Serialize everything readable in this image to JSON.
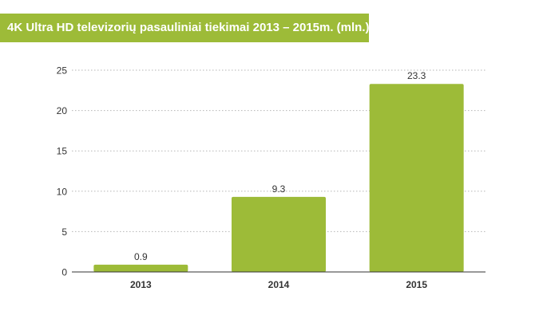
{
  "title": "4K Ultra HD televizorių pasauliniai tiekimai 2013 – 2015m. (mln.)",
  "colors": {
    "banner": "#9dbb38",
    "bar": "#9dbb38",
    "grid": "#b5b5b5",
    "axis": "#333333",
    "text": "#333333"
  },
  "chart_data": {
    "type": "bar",
    "title": "4K Ultra HD televizorių pasauliniai tiekimai 2013 – 2015m. (mln.)",
    "categories": [
      "2013",
      "2014",
      "2015"
    ],
    "values": [
      0.9,
      9.3,
      23.3
    ],
    "data_labels": [
      "0.9",
      "9.3",
      "23.3"
    ],
    "yticks": [
      "0",
      "5",
      "10",
      "15",
      "20",
      "25"
    ],
    "ylim": [
      0,
      25
    ],
    "xlabel": "",
    "ylabel": "",
    "grid": "horizontal-dotted",
    "legend": "none"
  }
}
